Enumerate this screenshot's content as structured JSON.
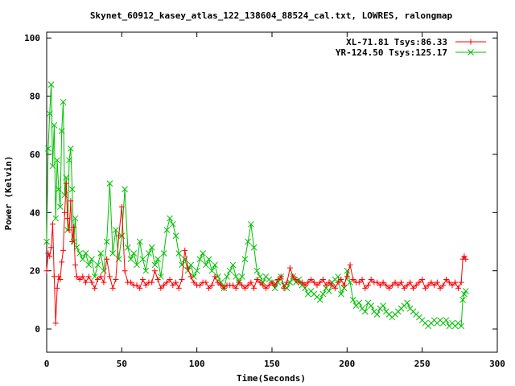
{
  "chart_data": {
    "type": "line",
    "title": "Skynet_60912_kasey_atlas_122_138604_88524_cal.txt, LOWRES, ralongmap",
    "xlabel": "Time(Seconds)",
    "ylabel": "Power (Kelvin)",
    "xlim": [
      0,
      300
    ],
    "ylim": [
      -8,
      102
    ],
    "xticks": [
      "0",
      "50",
      "100",
      "150",
      "200",
      "250",
      "300"
    ],
    "yticks": [
      "0",
      "20",
      "40",
      "60",
      "80",
      "100"
    ],
    "xtick_values": [
      0,
      50,
      100,
      150,
      200,
      250,
      300
    ],
    "ytick_values": [
      0,
      20,
      40,
      60,
      80,
      100
    ],
    "grid": false,
    "legend_position": "top-right",
    "series": [
      {
        "name": "XL-71.81 Tsys:86.33",
        "color": "#ff0000",
        "marker": "plus",
        "x": [
          0,
          1,
          2,
          3,
          4,
          5,
          6,
          7,
          8,
          9,
          10,
          11,
          12,
          13,
          14,
          15,
          16,
          17,
          18,
          19,
          20,
          22,
          24,
          26,
          28,
          30,
          32,
          34,
          36,
          38,
          40,
          42,
          44,
          46,
          48,
          50,
          52,
          54,
          56,
          58,
          60,
          62,
          64,
          66,
          68,
          70,
          72,
          74,
          76,
          78,
          80,
          82,
          84,
          86,
          88,
          90,
          92,
          94,
          96,
          98,
          100,
          102,
          104,
          106,
          108,
          110,
          112,
          114,
          116,
          118,
          120,
          122,
          124,
          126,
          128,
          130,
          132,
          134,
          136,
          138,
          140,
          142,
          144,
          146,
          148,
          150,
          152,
          154,
          156,
          158,
          160,
          162,
          164,
          166,
          168,
          170,
          172,
          174,
          176,
          178,
          180,
          182,
          184,
          186,
          188,
          190,
          192,
          194,
          196,
          198,
          200,
          202,
          204,
          206,
          208,
          210,
          212,
          214,
          216,
          218,
          220,
          222,
          224,
          226,
          228,
          230,
          232,
          234,
          236,
          238,
          240,
          242,
          244,
          246,
          248,
          250,
          252,
          254,
          256,
          258,
          260,
          262,
          264,
          266,
          268,
          270,
          272,
          274,
          276,
          277,
          278,
          279
        ],
        "y": [
          20,
          26,
          25,
          28,
          36,
          18,
          2,
          14,
          18,
          17,
          23,
          27,
          40,
          50,
          38,
          34,
          44,
          30,
          35,
          22,
          18,
          17,
          18,
          16,
          18,
          16,
          14,
          17,
          18,
          16,
          24,
          18,
          14,
          17,
          32,
          42,
          20,
          16,
          16,
          15,
          15,
          14,
          17,
          15,
          16,
          16,
          20,
          17,
          14,
          15,
          16,
          17,
          15,
          16,
          14,
          17,
          27,
          21,
          18,
          16,
          15,
          15,
          16,
          16,
          14,
          15,
          18,
          16,
          15,
          14,
          15,
          15,
          15,
          14,
          16,
          15,
          14,
          15,
          16,
          14,
          17,
          16,
          15,
          14,
          15,
          16,
          15,
          17,
          18,
          14,
          16,
          21,
          18,
          17,
          16,
          16,
          15,
          16,
          17,
          16,
          15,
          16,
          17,
          15,
          16,
          15,
          14,
          16,
          17,
          15,
          18,
          22,
          17,
          16,
          16,
          17,
          14,
          15,
          17,
          16,
          16,
          15,
          16,
          15,
          14,
          15,
          16,
          15,
          16,
          14,
          15,
          16,
          14,
          15,
          16,
          17,
          14,
          15,
          16,
          15,
          16,
          14,
          15,
          17,
          16,
          15,
          16,
          14,
          16,
          24,
          25,
          24
        ]
      },
      {
        "name": "YR-124.50 Tsys:125.17",
        "color": "#00c000",
        "marker": "x",
        "x": [
          0,
          1,
          2,
          3,
          4,
          5,
          6,
          7,
          8,
          9,
          10,
          11,
          12,
          13,
          14,
          15,
          16,
          17,
          18,
          19,
          20,
          22,
          24,
          26,
          28,
          30,
          32,
          34,
          36,
          38,
          40,
          42,
          44,
          46,
          48,
          50,
          52,
          54,
          56,
          58,
          60,
          62,
          64,
          66,
          68,
          70,
          72,
          74,
          76,
          78,
          80,
          82,
          84,
          86,
          88,
          90,
          92,
          94,
          96,
          98,
          100,
          102,
          104,
          106,
          108,
          110,
          112,
          114,
          116,
          118,
          120,
          122,
          124,
          126,
          128,
          130,
          132,
          134,
          136,
          138,
          140,
          142,
          144,
          146,
          148,
          150,
          152,
          154,
          156,
          158,
          160,
          162,
          164,
          166,
          168,
          170,
          172,
          174,
          176,
          178,
          180,
          182,
          184,
          186,
          188,
          190,
          192,
          194,
          196,
          198,
          200,
          202,
          204,
          206,
          208,
          210,
          212,
          214,
          216,
          218,
          220,
          222,
          224,
          226,
          228,
          230,
          232,
          234,
          236,
          238,
          240,
          242,
          244,
          246,
          248,
          250,
          252,
          254,
          256,
          258,
          260,
          262,
          264,
          266,
          268,
          270,
          272,
          274,
          276,
          277,
          278,
          279
        ],
        "y": [
          30,
          62,
          74,
          84,
          56,
          70,
          38,
          58,
          48,
          42,
          68,
          78,
          46,
          52,
          34,
          58,
          62,
          48,
          30,
          38,
          28,
          26,
          24,
          26,
          22,
          24,
          18,
          22,
          26,
          20,
          30,
          50,
          26,
          34,
          24,
          32,
          48,
          28,
          24,
          26,
          22,
          30,
          24,
          20,
          26,
          28,
          22,
          24,
          18,
          26,
          34,
          38,
          36,
          32,
          26,
          22,
          24,
          20,
          22,
          18,
          20,
          24,
          26,
          22,
          24,
          20,
          22,
          18,
          16,
          14,
          18,
          20,
          22,
          18,
          16,
          18,
          24,
          30,
          36,
          28,
          20,
          18,
          16,
          18,
          17,
          16,
          14,
          16,
          18,
          15,
          14,
          16,
          18,
          16,
          17,
          15,
          14,
          12,
          13,
          12,
          11,
          10,
          12,
          14,
          13,
          16,
          17,
          18,
          12,
          14,
          20,
          16,
          10,
          8,
          9,
          7,
          6,
          9,
          8,
          6,
          5,
          7,
          8,
          6,
          5,
          4,
          5,
          6,
          7,
          8,
          9,
          7,
          6,
          5,
          4,
          3,
          2,
          1,
          2,
          3,
          2,
          3,
          2,
          3,
          1,
          2,
          1,
          2,
          1,
          10,
          12,
          13
        ]
      }
    ]
  }
}
